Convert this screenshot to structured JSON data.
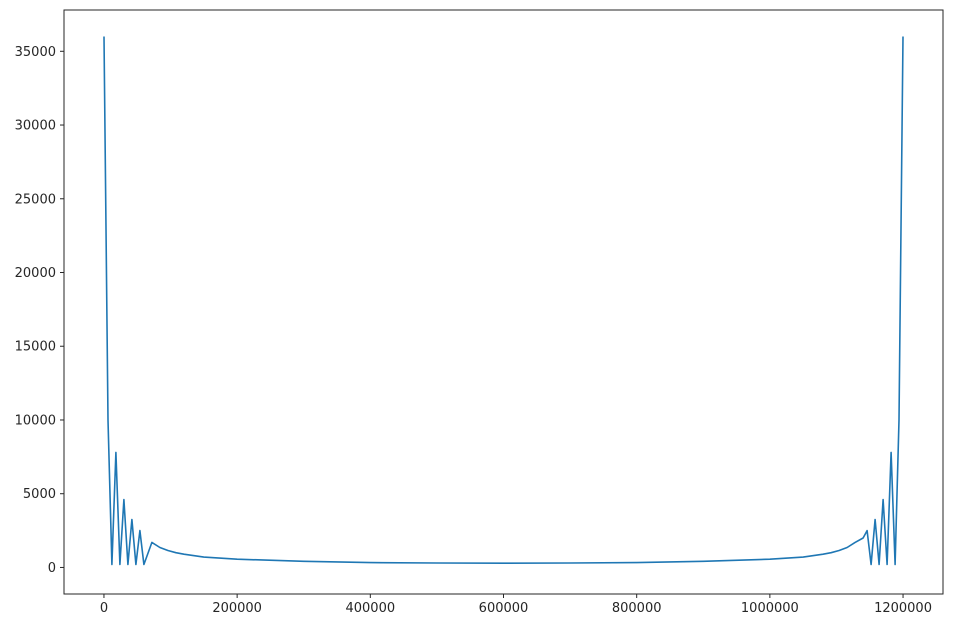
{
  "chart_data": {
    "type": "line",
    "title": "",
    "xlabel": "",
    "ylabel": "",
    "xlim": [
      -60000,
      1260000
    ],
    "ylim": [
      -1800,
      37800
    ],
    "x_ticks": [
      0,
      200000,
      400000,
      600000,
      800000,
      1000000,
      1200000
    ],
    "x_tick_labels": [
      "0",
      "200000",
      "400000",
      "600000",
      "800000",
      "1000000",
      "1200000"
    ],
    "y_ticks": [
      0,
      5000,
      10000,
      15000,
      20000,
      25000,
      30000,
      35000
    ],
    "y_tick_labels": [
      "0",
      "5000",
      "10000",
      "15000",
      "20000",
      "25000",
      "30000",
      "35000"
    ],
    "grid": false,
    "legend": "none",
    "series": [
      {
        "color": "#1f77b4",
        "description_of_shape": "magnitude spectrum: peaks of 36000 at both ends, sidelobes decaying toward the center",
        "x": [
          0,
          6000,
          12000,
          18000,
          24000,
          30000,
          36000,
          42000,
          48000,
          54000,
          60000,
          72000,
          84000,
          96000,
          108000,
          120000,
          150000,
          200000,
          300000,
          400000,
          500000,
          600000,
          700000,
          800000,
          900000,
          1000000,
          1050000,
          1080000,
          1092000,
          1104000,
          1116000,
          1128000,
          1140000,
          1146000,
          1152000,
          1158000,
          1164000,
          1170000,
          1176000,
          1182000,
          1188000,
          1194000,
          1200000
        ],
        "y": [
          36000,
          10000,
          200,
          7800,
          200,
          4600,
          200,
          3250,
          200,
          2500,
          200,
          1700,
          1350,
          1150,
          1000,
          900,
          700,
          560,
          420,
          330,
          300,
          290,
          300,
          330,
          420,
          560,
          700,
          900,
          1000,
          1150,
          1350,
          1700,
          2000,
          2500,
          200,
          3250,
          200,
          4600,
          200,
          7800,
          200,
          10000,
          36000
        ]
      }
    ]
  }
}
